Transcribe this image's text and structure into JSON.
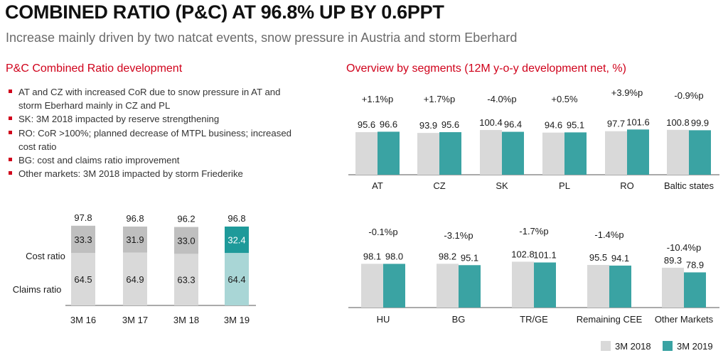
{
  "title": "COMBINED RATIO (P&C) AT 96.8% UP BY 0.6PPT",
  "subtitle": "Increase mainly driven by two natcat events, snow pressure in Austria and storm Eberhard",
  "left_section_title": "P&C Combined Ratio development",
  "right_section_title": "Overview by segments (12M y-o-y development net, %)",
  "bullets": [
    "AT and CZ with increased CoR due to snow pressure in AT and storm Eberhard mainly in CZ and PL",
    "SK: 3M 2018 impacted by reserve strengthening",
    "RO: CoR >100%; planned decrease of MTPL business; increased cost ratio",
    "BG: cost and claims ratio improvement",
    "Other markets: 3M 2018 impacted by storm Friederike"
  ],
  "colors": {
    "accent_red": "#d0021b",
    "series_2018": "#d9d9d9",
    "series_2019": "#3aa3a3",
    "cost_gray": "#bfbfbf",
    "claims_gray": "#d9d9d9",
    "cost_teal": "#1e9a9a",
    "claims_teal": "#a9d6d6"
  },
  "chart_data": [
    {
      "type": "bar",
      "subtype": "stacked",
      "categories": [
        "3M 16",
        "3M 17",
        "3M 18",
        "3M 19"
      ],
      "series": [
        {
          "name": "Claims ratio",
          "values": [
            64.5,
            64.9,
            63.3,
            64.4
          ]
        },
        {
          "name": "Cost ratio",
          "values": [
            33.3,
            31.9,
            33.0,
            32.4
          ]
        }
      ],
      "totals": [
        97.8,
        96.8,
        96.2,
        96.8
      ]
    },
    {
      "type": "bar",
      "categories": [
        "AT",
        "CZ",
        "SK",
        "PL",
        "RO",
        "Baltic states"
      ],
      "series": [
        {
          "name": "3M 2018",
          "values": [
            95.6,
            93.9,
            100.4,
            94.6,
            97.7,
            100.8
          ]
        },
        {
          "name": "3M 2019",
          "values": [
            96.6,
            95.6,
            96.4,
            95.1,
            101.6,
            99.9
          ]
        }
      ],
      "changes": [
        "+1.1%p",
        "+1.7%p",
        "-4.0%p",
        "+0.5%",
        "+3.9%p",
        "-0.9%p"
      ]
    },
    {
      "type": "bar",
      "categories": [
        "HU",
        "BG",
        "TR/GE",
        "Remaining CEE",
        "Other Markets"
      ],
      "series": [
        {
          "name": "3M 2018",
          "values": [
            98.1,
            98.2,
            102.8,
            95.5,
            89.3
          ]
        },
        {
          "name": "3M 2019",
          "values": [
            98.0,
            95.1,
            101.1,
            94.1,
            78.9
          ]
        }
      ],
      "changes": [
        "-0.1%p",
        "-3.1%p",
        "-1.7%p",
        "-1.4%p",
        "-10.4%p"
      ]
    }
  ],
  "legend": [
    "3M 2018",
    "3M 2019"
  ]
}
